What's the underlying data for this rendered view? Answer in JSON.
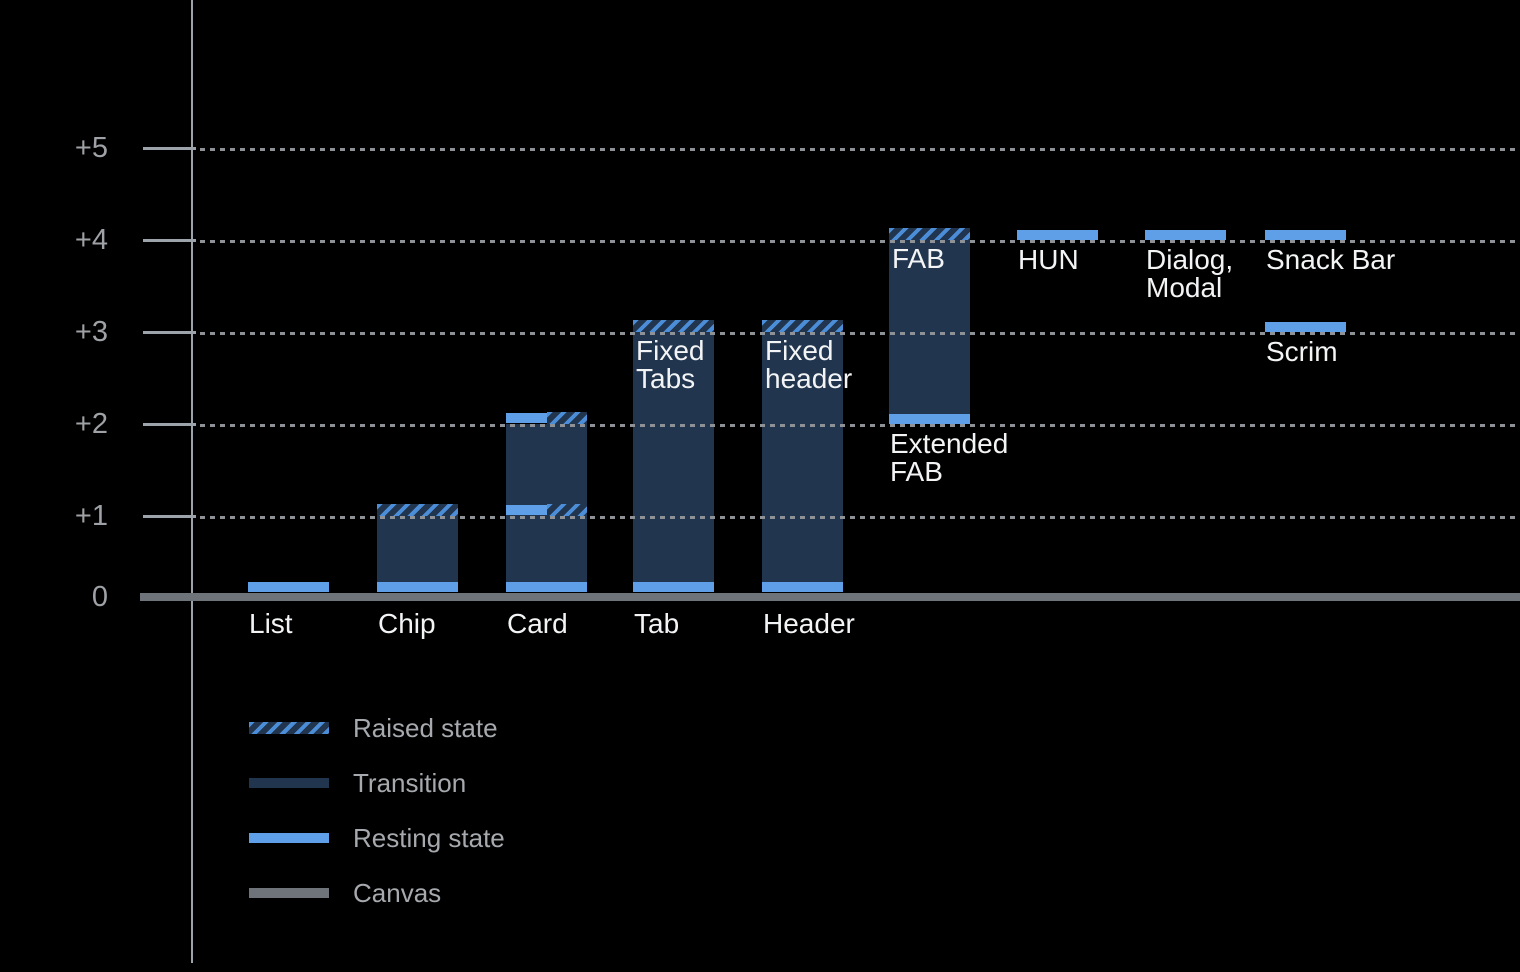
{
  "chart_data": {
    "type": "bar",
    "title": "",
    "y_axis": {
      "tick_labels": [
        "+5",
        "+4",
        "+3",
        "+2",
        "+1",
        "0"
      ],
      "tick_values": [
        5,
        4,
        3,
        2,
        1,
        0
      ],
      "range": [
        0,
        5
      ],
      "grid": "dotted"
    },
    "legend": [
      {
        "id": "raised",
        "label": "Raised state"
      },
      {
        "id": "transition",
        "label": "Transition"
      },
      {
        "id": "resting",
        "label": "Resting state"
      },
      {
        "id": "canvas",
        "label": "Canvas"
      }
    ],
    "legend_position": "bottom-left",
    "items": [
      {
        "label": "List",
        "label_lines": [
          "List"
        ],
        "label_pos": "axis",
        "segments": [
          {
            "kind": "resting",
            "at": 0
          }
        ]
      },
      {
        "label": "Chip",
        "label_lines": [
          "Chip"
        ],
        "label_pos": "axis",
        "segments": [
          {
            "kind": "transition",
            "from": 0,
            "to": 1
          },
          {
            "kind": "resting",
            "at": 0
          },
          {
            "kind": "raised",
            "at": 1
          }
        ]
      },
      {
        "label": "Card",
        "label_lines": [
          "Card"
        ],
        "label_pos": "axis",
        "segments": [
          {
            "kind": "transition",
            "from": 0,
            "to": 2
          },
          {
            "kind": "resting",
            "at": 0
          },
          {
            "kind": "resting-raised",
            "at": 1
          },
          {
            "kind": "resting-raised",
            "at": 2
          }
        ]
      },
      {
        "label": "Tab",
        "label_lines": [
          "Tab"
        ],
        "label_pos": "axis",
        "inside_label": {
          "lines": [
            "Fixed",
            "Tabs"
          ],
          "anchor": 3
        },
        "segments": [
          {
            "kind": "transition",
            "from": 0,
            "to": 3
          },
          {
            "kind": "resting",
            "at": 0
          },
          {
            "kind": "raised",
            "at": 3
          }
        ]
      },
      {
        "label": "Header",
        "label_lines": [
          "Header"
        ],
        "label_pos": "axis",
        "inside_label": {
          "lines": [
            "Fixed",
            "header"
          ],
          "anchor": 3
        },
        "segments": [
          {
            "kind": "transition",
            "from": 0,
            "to": 3
          },
          {
            "kind": "resting",
            "at": 0
          },
          {
            "kind": "raised",
            "at": 3
          }
        ]
      },
      {
        "label": "Extended FAB",
        "label_lines": [
          "Extended",
          "FAB"
        ],
        "label_pos": "band",
        "label_anchor": 2,
        "inside_label": {
          "lines": [
            "FAB"
          ],
          "anchor": 4
        },
        "segments": [
          {
            "kind": "transition",
            "from": 2,
            "to": 4
          },
          {
            "kind": "resting",
            "at": 2
          },
          {
            "kind": "raised",
            "at": 4
          }
        ]
      },
      {
        "label": "HUN",
        "label_lines": [
          "HUN"
        ],
        "label_pos": "band",
        "label_anchor": 4,
        "segments": [
          {
            "kind": "resting",
            "at": 4
          }
        ]
      },
      {
        "label": "Dialog, Modal",
        "label_lines": [
          "Dialog,",
          "Modal"
        ],
        "label_pos": "band",
        "label_anchor": 4,
        "segments": [
          {
            "kind": "resting",
            "at": 4
          }
        ]
      },
      {
        "label": "Snack Bar",
        "label_lines": [
          "Snack Bar"
        ],
        "label_pos": "band",
        "label_anchor": 4,
        "segments": [
          {
            "kind": "resting",
            "at": 4
          }
        ]
      },
      {
        "label": "Scrim",
        "label_lines": [
          "Scrim"
        ],
        "label_pos": "band",
        "label_anchor": 3,
        "segments": [
          {
            "kind": "resting",
            "at": 3
          }
        ]
      }
    ],
    "colors": {
      "background": "#000000",
      "resting": "#5F9FE8",
      "transition": "#21354E",
      "raised_stripe": "#4C8DD8",
      "canvas": "#6F747B",
      "grid": "#8E9296",
      "axis": "#9DA3AA",
      "tick_label": "#9EA1A5",
      "bar_label": "#F3F4F5",
      "legend_text": "#A6A9AD"
    }
  }
}
